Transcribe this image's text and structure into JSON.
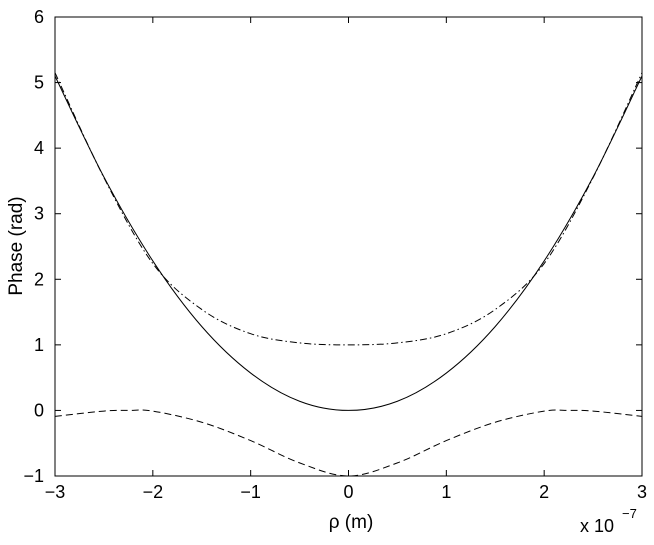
{
  "chart_data": {
    "type": "line",
    "title": "",
    "xlabel": "ρ (m)",
    "ylabel": "Phase (rad)",
    "x_exponent_label": {
      "base": "x 10",
      "exponent": "−7"
    },
    "xlim": [
      -3,
      3
    ],
    "ylim": [
      -1,
      6
    ],
    "x_scale_factor": 1e-07,
    "xticks": [
      "−3",
      "−2",
      "−1",
      "0",
      "1",
      "2",
      "3"
    ],
    "xtick_values": [
      -3,
      -2,
      -1,
      0,
      1,
      2,
      3
    ],
    "yticks": [
      "−1",
      "0",
      "1",
      "2",
      "3",
      "4",
      "5",
      "6"
    ],
    "ytick_values": [
      -1,
      0,
      1,
      2,
      3,
      4,
      5,
      6
    ],
    "grid": false,
    "legend": "none",
    "series": [
      {
        "style": "solid",
        "color": "#000000",
        "x": [
          -3,
          -2.5,
          -2,
          -1.5,
          -1,
          -0.5,
          0,
          0.5,
          1,
          1.5,
          2,
          2.5,
          3
        ],
        "y": [
          5.1,
          3.56,
          2.28,
          1.28,
          0.57,
          0.14,
          0.0,
          0.14,
          0.57,
          1.28,
          2.28,
          3.56,
          5.1
        ]
      },
      {
        "style": "dashed",
        "color": "#000000",
        "x": [
          -3,
          -2.5,
          -2.25,
          -2,
          -1.5,
          -1,
          -0.5,
          0,
          0.5,
          1,
          1.5,
          2,
          2.25,
          2.5,
          3
        ],
        "y": [
          -0.09,
          -0.01,
          0.0,
          -0.01,
          -0.18,
          -0.46,
          -0.8,
          -1.0,
          -0.8,
          -0.46,
          -0.18,
          -0.01,
          0.0,
          -0.01,
          -0.09
        ]
      },
      {
        "style": "dash-dot",
        "color": "#000000",
        "x": [
          -3,
          -2.5,
          -2,
          -1.5,
          -1,
          -0.5,
          0,
          0.5,
          1,
          1.5,
          2,
          2.5,
          3
        ],
        "y": [
          5.15,
          3.55,
          2.24,
          1.54,
          1.17,
          1.03,
          1.0,
          1.03,
          1.17,
          1.54,
          2.24,
          3.55,
          5.15
        ]
      }
    ]
  }
}
